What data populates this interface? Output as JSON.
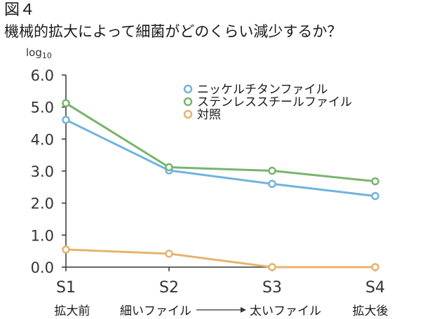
{
  "figure": {
    "label": "図４",
    "title": "機械的拡大によって細菌がどのくらい減少するか？"
  },
  "chart_data": {
    "type": "line",
    "title": "機械的拡大によって細菌がどのくらい減少するか？",
    "ylabel": "log10",
    "ylabel_main": "log",
    "ylabel_sub": "10",
    "xlabel": "",
    "ylim": [
      0,
      6
    ],
    "yticks": [
      "0.0",
      "1.0",
      "2.0",
      "3.0",
      "4.0",
      "5.0",
      "6.0"
    ],
    "categories": [
      "S1",
      "S2",
      "S3",
      "S4"
    ],
    "sublabels": {
      "s1": "拡大前",
      "s2": "細いファイル",
      "s3": "太いファイル",
      "s4": "拡大後"
    },
    "series": [
      {
        "name": "ニッケルチタンファイル",
        "color": "#6fb3dd",
        "values": [
          4.6,
          3.02,
          2.6,
          2.22
        ]
      },
      {
        "name": "ステンレススチールファイル",
        "color": "#78b46e",
        "values": [
          5.12,
          3.12,
          3.01,
          2.68
        ]
      },
      {
        "name": "対照",
        "color": "#e6b36e",
        "values": [
          0.55,
          0.42,
          0.0,
          0.0
        ]
      }
    ],
    "grid": false,
    "legend_position": "top-right"
  }
}
